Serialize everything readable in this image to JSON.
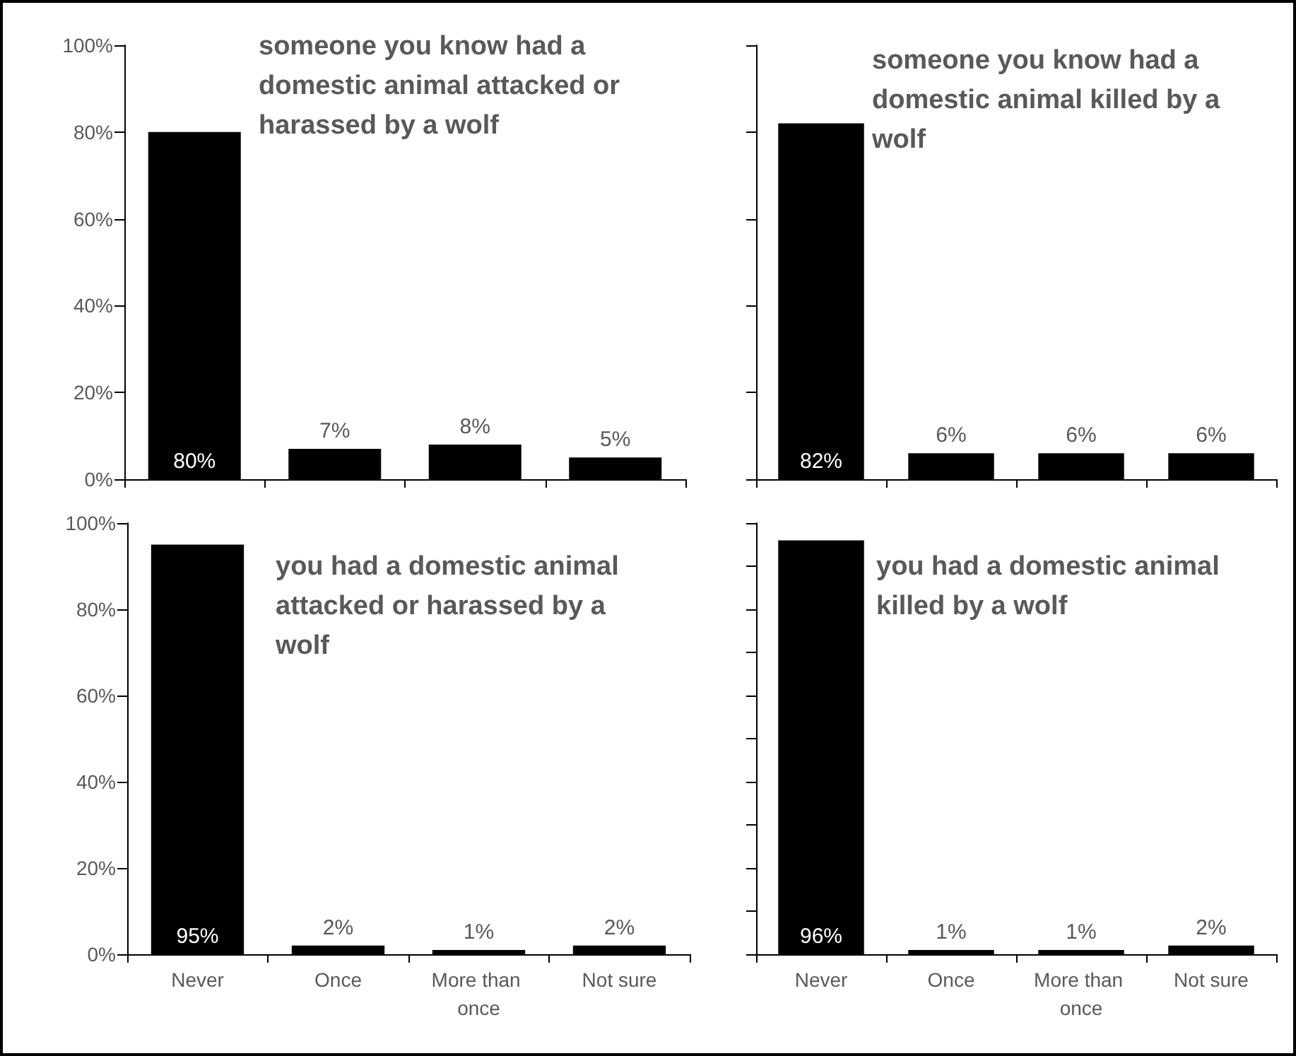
{
  "chart_data": [
    {
      "type": "bar",
      "title": "someone you know had a domestic animal attacked or harassed by a wolf",
      "categories": [
        "Never",
        "Once",
        "More than once",
        "Not sure"
      ],
      "values": [
        80,
        7,
        8,
        5
      ],
      "value_labels": [
        "80%",
        "7%",
        "8%",
        "5%"
      ],
      "color": "#000000",
      "ylim": [
        0,
        100
      ],
      "yticks": [
        {
          "value": 0,
          "label": "0%"
        },
        {
          "value": 20,
          "label": "20%"
        },
        {
          "value": 40,
          "label": "40%"
        },
        {
          "value": 60,
          "label": "60%"
        },
        {
          "value": 80,
          "label": "80%"
        },
        {
          "value": 100,
          "label": "100%"
        }
      ],
      "grid": false,
      "tick_labels": "y"
    },
    {
      "type": "bar",
      "title": "someone you know had a domestic animal killed by a wolf",
      "categories": [
        "Never",
        "Once",
        "More than once",
        "Not sure"
      ],
      "values": [
        82,
        6,
        6,
        6
      ],
      "value_labels": [
        "82%",
        "6%",
        "6%",
        "6%"
      ],
      "color": "#000000",
      "ylim": [
        0,
        100
      ],
      "yticks": [
        {
          "value": 0,
          "label": null
        },
        {
          "value": 20,
          "label": null
        },
        {
          "value": 40,
          "label": null
        },
        {
          "value": 60,
          "label": null
        },
        {
          "value": 80,
          "label": null
        },
        {
          "value": 100,
          "label": null
        }
      ],
      "grid": false,
      "tick_labels": false
    },
    {
      "type": "bar",
      "title": "you had a domestic animal attacked or harassed by a wolf",
      "categories": [
        "Never",
        "Once",
        "More than once",
        "Not sure"
      ],
      "values": [
        95,
        2,
        1,
        2
      ],
      "value_labels": [
        "95%",
        "2%",
        "1%",
        "2%"
      ],
      "color": "#000000",
      "ylim": [
        0,
        100
      ],
      "yticks": [
        {
          "value": 0,
          "label": "0%"
        },
        {
          "value": 20,
          "label": "20%"
        },
        {
          "value": 40,
          "label": "40%"
        },
        {
          "value": 60,
          "label": "60%"
        },
        {
          "value": 80,
          "label": "80%"
        },
        {
          "value": 100,
          "label": "100%"
        }
      ],
      "grid": false
    },
    {
      "type": "bar",
      "title": "you had a domestic animal killed by a wolf",
      "categories": [
        "Never",
        "Once",
        "More than once",
        "Not sure"
      ],
      "values": [
        96,
        1,
        1,
        2
      ],
      "value_labels": [
        "96%",
        "1%",
        "1%",
        "2%"
      ],
      "color": "#000000",
      "ylim": [
        0,
        100
      ],
      "yticks": [
        {
          "value": 0,
          "label": null
        },
        {
          "value": 10,
          "label": null
        },
        {
          "value": 20,
          "label": null
        },
        {
          "value": 30,
          "label": null
        },
        {
          "value": 40,
          "label": null
        },
        {
          "value": 50,
          "label": null
        },
        {
          "value": 60,
          "label": null
        },
        {
          "value": 70,
          "label": null
        },
        {
          "value": 80,
          "label": null
        },
        {
          "value": 90,
          "label": null
        },
        {
          "value": 100,
          "label": null
        }
      ],
      "grid": false,
      "tick_labels": "x"
    }
  ]
}
